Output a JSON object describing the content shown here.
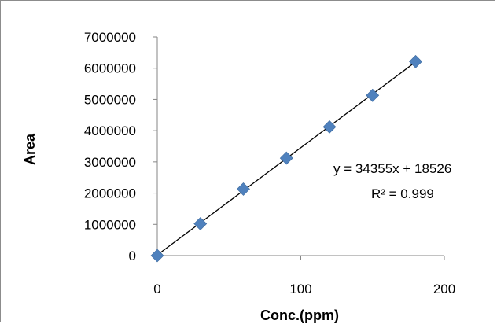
{
  "chart_data": {
    "type": "scatter",
    "xlabel": "Conc.(ppm)",
    "ylabel": "Area",
    "xlim": [
      0,
      200
    ],
    "ylim": [
      0,
      7000000
    ],
    "x_ticks": [
      "0",
      "100",
      "200"
    ],
    "y_ticks": [
      "0",
      "1000000",
      "2000000",
      "3000000",
      "4000000",
      "5000000",
      "6000000",
      "7000000"
    ],
    "grid": false,
    "legend": "none",
    "series": [
      {
        "marker": "diamond",
        "color": "#4f81bd",
        "x": [
          0,
          30,
          60,
          90,
          120,
          150,
          180
        ],
        "y": [
          0,
          1020000,
          2130000,
          3120000,
          4120000,
          5130000,
          6210000
        ]
      }
    ],
    "trendline": {
      "type": "linear",
      "slope": 34355,
      "intercept": 18526,
      "equation": "y = 34355x + 18526",
      "r_squared": "R² = 0.999",
      "color": "#000000"
    }
  }
}
